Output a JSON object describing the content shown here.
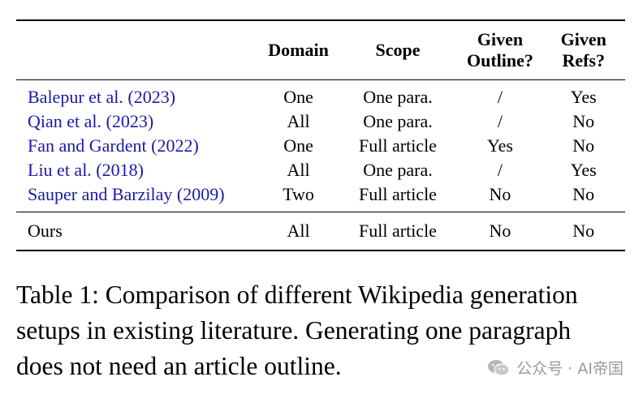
{
  "table": {
    "headers": {
      "work": "",
      "domain": "Domain",
      "scope": "Scope",
      "outline_line1": "Given",
      "outline_line2": "Outline?",
      "refs_line1": "Given",
      "refs_line2": "Refs?"
    },
    "rows": [
      {
        "work": "Balepur et al. (2023)",
        "domain": "One",
        "scope": "One para.",
        "outline": "/",
        "refs": "Yes"
      },
      {
        "work": "Qian et al. (2023)",
        "domain": "All",
        "scope": "One para.",
        "outline": "/",
        "refs": "No"
      },
      {
        "work": "Fan and Gardent (2022)",
        "domain": "One",
        "scope": "Full article",
        "outline": "Yes",
        "refs": "No"
      },
      {
        "work": "Liu et al. (2018)",
        "domain": "All",
        "scope": "One para.",
        "outline": "/",
        "refs": "Yes"
      },
      {
        "work": "Sauper and Barzilay (2009)",
        "domain": "Two",
        "scope": "Full article",
        "outline": "No",
        "refs": "No"
      }
    ],
    "ours": {
      "work": "Ours",
      "domain": "All",
      "scope": "Full article",
      "outline": "No",
      "refs": "No"
    }
  },
  "caption": {
    "line1": "Table 1: Comparison of different Wikipedia generation",
    "line2": "setups in existing literature. Generating one paragraph",
    "line3": "does not need an article outline."
  },
  "watermark": {
    "text": "公众号 · AI帝国",
    "icon": "wechat-icon"
  },
  "colors": {
    "citation": "#1a1aa6",
    "text": "#000000",
    "watermark": "#9a9a9a"
  }
}
